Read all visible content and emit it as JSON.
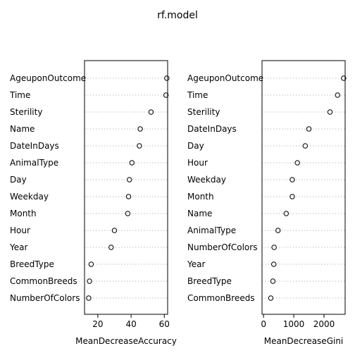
{
  "title": "rf.model",
  "chart_data": [
    {
      "type": "scatter",
      "xlabel": "MeanDecreaseAccuracy",
      "xlim": [
        12,
        62
      ],
      "xticks": [
        20,
        40,
        60
      ],
      "grid": "dotted-horizontal",
      "categories": [
        "AgeuponOutcome",
        "Time",
        "Sterility",
        "Name",
        "DateInDays",
        "AnimalType",
        "Day",
        "Weekday",
        "Month",
        "Hour",
        "Year",
        "BreedType",
        "CommonBreeds",
        "NumberOfColors"
      ],
      "values": [
        61.5,
        61.0,
        52.0,
        45.5,
        45.0,
        40.5,
        39.0,
        38.5,
        38.0,
        30.0,
        28.0,
        16.0,
        15.0,
        14.5
      ]
    },
    {
      "type": "scatter",
      "xlabel": "MeanDecreaseGini",
      "xlim": [
        -50,
        2700
      ],
      "xticks": [
        0,
        1000,
        2000
      ],
      "grid": "dotted-horizontal",
      "categories": [
        "AgeuponOutcome",
        "Time",
        "Sterility",
        "DateInDays",
        "Day",
        "Hour",
        "Weekday",
        "Month",
        "Name",
        "AnimalType",
        "NumberOfColors",
        "Year",
        "BreedType",
        "CommonBreeds"
      ],
      "values": [
        2650,
        2450,
        2200,
        1500,
        1380,
        1120,
        950,
        950,
        750,
        480,
        350,
        340,
        310,
        240
      ]
    }
  ]
}
